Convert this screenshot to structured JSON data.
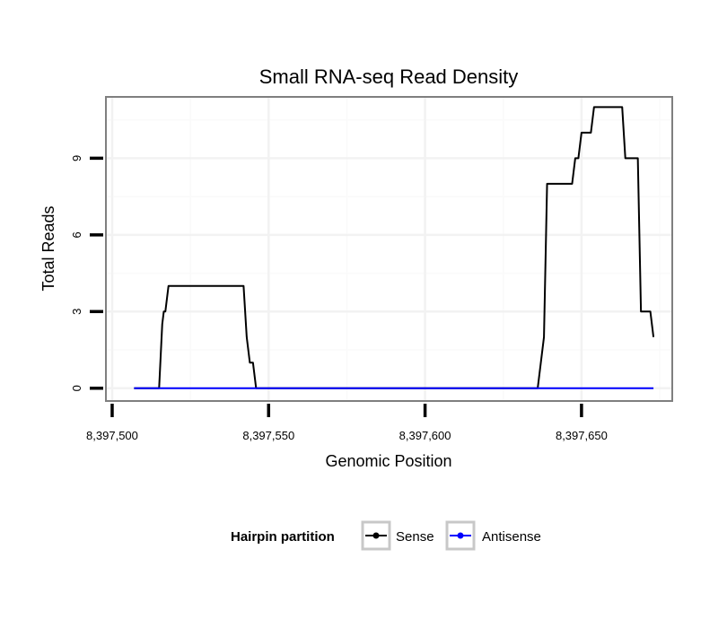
{
  "chart_data": {
    "type": "line",
    "title": "Small RNA-seq Read Density",
    "xlabel": "Genomic Position",
    "ylabel": "Total Reads",
    "xlim": [
      8397498,
      8397679
    ],
    "ylim": [
      -0.5,
      11.4
    ],
    "x_ticks": [
      {
        "value": 8397500,
        "label": "8,397,500"
      },
      {
        "value": 8397550,
        "label": "8,397,550"
      },
      {
        "value": 8397600,
        "label": "8,397,600"
      },
      {
        "value": 8397650,
        "label": "8,397,650"
      }
    ],
    "x_minor": [
      8397525,
      8397575,
      8397625,
      8397675
    ],
    "y_ticks": [
      {
        "value": 0,
        "label": "0"
      },
      {
        "value": 3,
        "label": "3"
      },
      {
        "value": 6,
        "label": "6"
      },
      {
        "value": 9,
        "label": "9"
      }
    ],
    "y_minor": [
      1.5,
      4.5,
      7.5,
      10.5
    ],
    "grid": true,
    "legend": {
      "title": "Hairpin partition",
      "placement": "bottom"
    },
    "series": [
      {
        "name": "Sense",
        "color": "#000000",
        "x": [
          8397507,
          8397515,
          8397516,
          8397516.5,
          8397517,
          8397518,
          8397520,
          8397542,
          8397543,
          8397544,
          8397545,
          8397546,
          8397636,
          8397638,
          8397639,
          8397647,
          8397648,
          8397649,
          8397650,
          8397653,
          8397654,
          8397663,
          8397664,
          8397668,
          8397669,
          8397672,
          8397673
        ],
        "y": [
          0,
          0,
          2.5,
          3,
          3,
          4,
          4,
          4,
          2,
          1,
          1,
          0,
          0,
          2,
          8,
          8,
          9,
          9,
          10,
          10,
          11,
          11,
          9,
          9,
          3,
          3,
          2
        ]
      },
      {
        "name": "Antisense",
        "color": "#0000ff",
        "x": [
          8397507,
          8397673
        ],
        "y": [
          0,
          0
        ]
      }
    ]
  }
}
